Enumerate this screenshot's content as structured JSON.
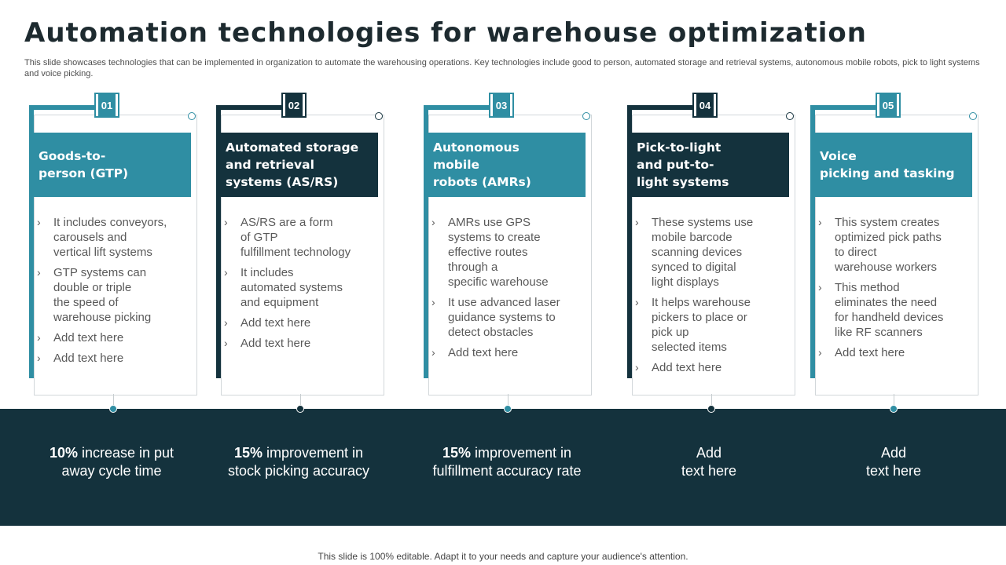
{
  "title": "Automation technologies for warehouse optimization",
  "subtitle": "This slide showcases technologies that can be implemented in organization to automate the warehousing operations. Key technologies include good to person, automated storage and retrieval systems, autonomous mobile robots, pick to light systems and voice picking.",
  "colors": {
    "teal": "#2f8ea3",
    "dark": "#14323d",
    "band": "#14323d"
  },
  "cards": [
    {
      "number": "01",
      "heading": "Goods-to-\nperson (GTP)",
      "theme": "teal",
      "bullets": [
        "It includes conveyors,\ncarousels and\nvertical lift systems",
        "GTP systems can\ndouble or triple\nthe speed of\nwarehouse picking",
        "Add text here",
        "Add text here"
      ]
    },
    {
      "number": "02",
      "heading": "Automated storage\nand retrieval\nsystems (AS/RS)",
      "theme": "dark",
      "bullets": [
        "AS/RS are a form\nof GTP\nfulfillment  technology",
        "It includes\nautomated systems\nand equipment",
        "Add text here",
        "Add text here"
      ]
    },
    {
      "number": "03",
      "heading": "Autonomous\nmobile\nrobots (AMRs)",
      "theme": "teal",
      "bullets": [
        "AMRs use GPS\nsystems to create\neffective routes\nthrough a\nspecific warehouse",
        " It use advanced laser\nguidance systems to\ndetect obstacles",
        "Add text here"
      ]
    },
    {
      "number": "04",
      "heading": "Pick-to-light\nand put-to-\nlight systems",
      "theme": "dark",
      "bullets": [
        "These systems use\nmobile barcode\nscanning devices\nsynced to digital\nlight displays",
        "It helps warehouse\npickers to place or\npick up\nselected items",
        "Add text here"
      ]
    },
    {
      "number": "05",
      "heading": "Voice\npicking and tasking",
      "theme": "teal",
      "bullets": [
        "This system creates\noptimized pick paths\nto direct\nwarehouse workers",
        "This method\neliminates the need\nfor handheld devices\nlike RF scanners",
        "Add text here"
      ]
    }
  ],
  "stats": [
    {
      "bold": "10%",
      "rest": " increase in put\naway  cycle time"
    },
    {
      "bold": "15%",
      "rest": " improvement in\nstock picking accuracy"
    },
    {
      "bold": "15%",
      "rest": " improvement in\nfulfillment accuracy rate"
    },
    {
      "bold": "",
      "rest": "Add\ntext here"
    },
    {
      "bold": "",
      "rest": "Add\ntext here"
    }
  ],
  "footer": "This slide is 100% editable. Adapt it to your needs and capture your audience's attention."
}
